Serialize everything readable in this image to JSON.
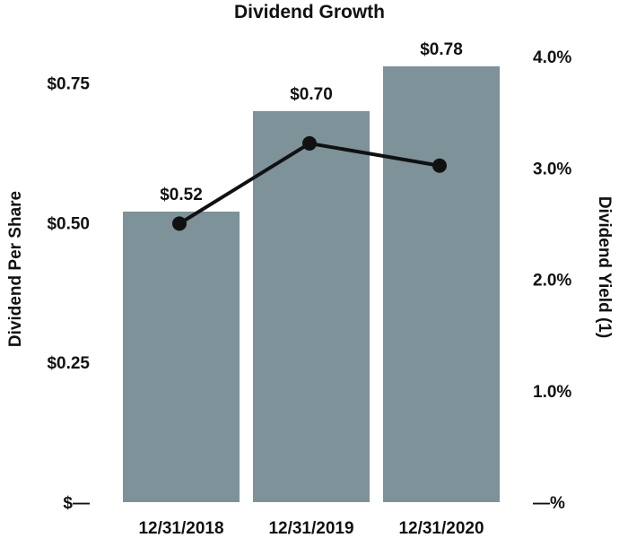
{
  "chart_data": {
    "type": "bar",
    "title": "Dividend Growth",
    "categories": [
      "12/31/2018",
      "12/31/2019",
      "12/31/2020"
    ],
    "series": [
      {
        "name": "Dividend Per Share",
        "kind": "bar",
        "axis": "left",
        "values": [
          0.52,
          0.7,
          0.78
        ],
        "labels": [
          "$0.52",
          "$0.70",
          "$0.78"
        ]
      },
      {
        "name": "Dividend Yield (1)",
        "kind": "line",
        "axis": "right",
        "values": [
          2.5,
          3.22,
          3.02
        ]
      }
    ],
    "ylabel_left": "Dividend Per Share",
    "ylabel_right": "Dividend Yield (1)",
    "ylim_left": [
      0,
      0.78
    ],
    "ylim_right": [
      0,
      4.0
    ],
    "yticks_left": [
      {
        "value": 0,
        "label": "$—"
      },
      {
        "value": 0.25,
        "label": "$0.25"
      },
      {
        "value": 0.5,
        "label": "$0.50"
      },
      {
        "value": 0.75,
        "label": "$0.75"
      }
    ],
    "yticks_right": [
      {
        "value": 0,
        "label": "—%"
      },
      {
        "value": 1.0,
        "label": "1.0%"
      },
      {
        "value": 2.0,
        "label": "2.0%"
      },
      {
        "value": 3.0,
        "label": "3.0%"
      },
      {
        "value": 4.0,
        "label": "4.0%"
      }
    ],
    "grid": false,
    "colors": {
      "bar": "#7d9299",
      "line": "#111111",
      "text": "#111111"
    }
  }
}
